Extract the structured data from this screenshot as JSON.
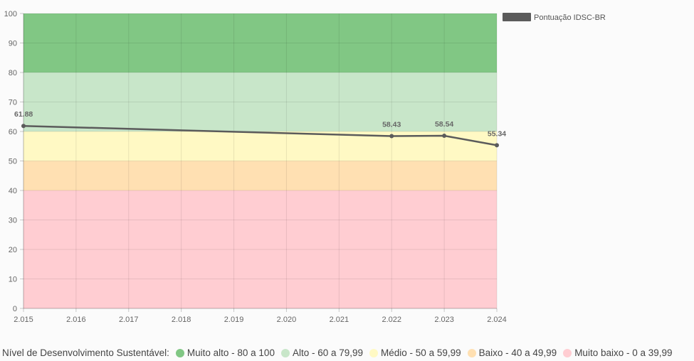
{
  "chart_data": {
    "type": "line",
    "x": [
      "2.015",
      "2.016",
      "2.017",
      "2.018",
      "2.019",
      "2.020",
      "2.021",
      "2.022",
      "2.023",
      "2.024"
    ],
    "series": [
      {
        "name": "Pontuação IDSC-BR",
        "color": "#5b5b5b",
        "points": [
          {
            "x": "2.015",
            "y": 61.88,
            "label": "61.88"
          },
          {
            "x": "2.022",
            "y": 58.43,
            "label": "58.43"
          },
          {
            "x": "2.023",
            "y": 58.54,
            "label": "58.54"
          },
          {
            "x": "2.024",
            "y": 55.34,
            "label": "55.34"
          }
        ]
      }
    ],
    "yticks": [
      "0",
      "10",
      "20",
      "30",
      "40",
      "50",
      "60",
      "70",
      "80",
      "90",
      "100"
    ],
    "ylim": [
      0,
      100
    ],
    "grid": true,
    "legend_placement": "top-right",
    "bands": [
      {
        "from": 80,
        "to": 100,
        "color": "#81c784"
      },
      {
        "from": 60,
        "to": 80,
        "color": "#c8e6c9"
      },
      {
        "from": 50,
        "to": 60,
        "color": "#fff9c4"
      },
      {
        "from": 40,
        "to": 50,
        "color": "#ffe0b2"
      },
      {
        "from": 0,
        "to": 40,
        "color": "#ffcdd2"
      }
    ]
  },
  "footer_legend": {
    "title": "Nível de Desenvolvimento Sustentável:",
    "items": [
      {
        "label": "Muito alto - 80 a 100",
        "color": "#81c784"
      },
      {
        "label": "Alto - 60 a 79,99",
        "color": "#c8e6c9"
      },
      {
        "label": "Médio - 50 a 59,99",
        "color": "#fff9c4"
      },
      {
        "label": "Baixo - 40 a 49,99",
        "color": "#ffe0b2"
      },
      {
        "label": "Muito baixo - 0 a 39,99",
        "color": "#ffcdd2"
      }
    ]
  }
}
